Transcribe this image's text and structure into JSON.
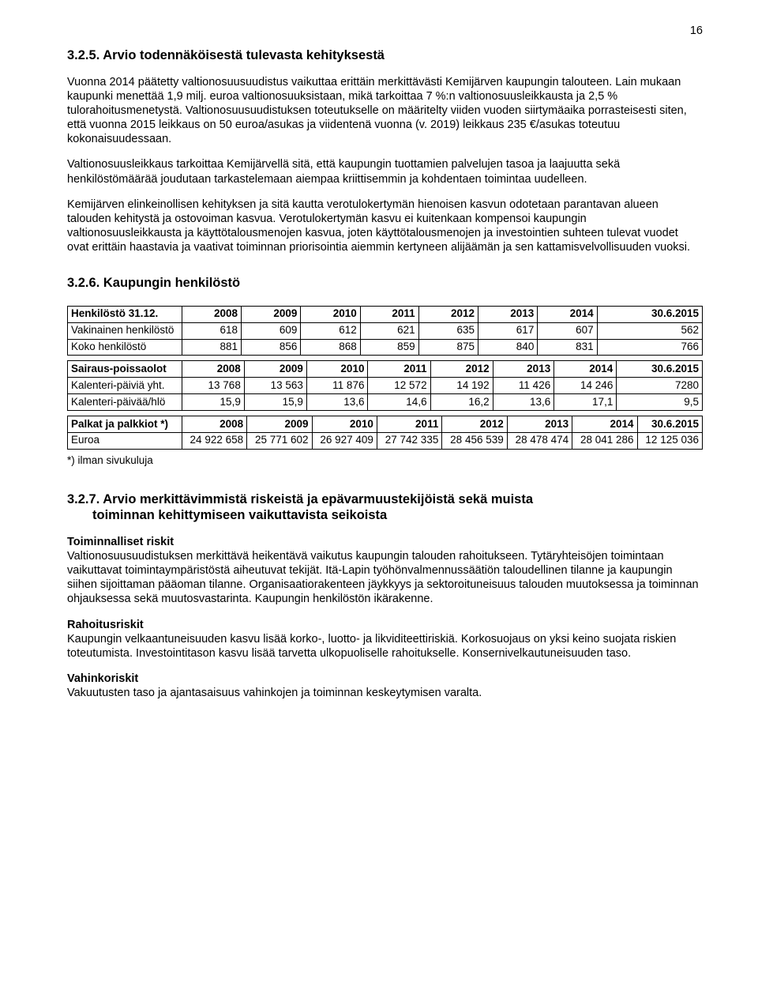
{
  "page_number": "16",
  "section_325": {
    "heading": "3.2.5. Arvio todennäköisestä tulevasta kehityksestä",
    "p1": "Vuonna 2014 päätetty valtionosuusuudistus vaikuttaa erittäin merkittävästi Kemijärven kaupungin talouteen. Lain mukaan kaupunki menettää 1,9 milj. euroa valtionosuuksistaan, mikä tarkoittaa 7 %:n valtionosuusleikkausta ja 2,5 % tulorahoitusmenetystä. Valtionosuusuudistuksen toteutukselle on määritelty viiden vuoden siirtymäaika porrasteisesti siten, että vuonna 2015 leikkaus on 50 euroa/asukas ja viidentenä vuonna (v. 2019) leikkaus 235 €/asukas toteutuu kokonaisuudessaan.",
    "p2": "Valtionosuusleikkaus tarkoittaa Kemijärvellä sitä, että kaupungin tuottamien palvelujen tasoa ja laajuutta sekä henkilöstömäärää joudutaan tarkastelemaan aiempaa kriittisemmin ja kohdentaen toimintaa uudelleen.",
    "p3": "Kemijärven elinkeinollisen kehityksen ja sitä kautta verotulokertymän hienoisen kasvun odotetaan parantavan alueen talouden kehitystä ja ostovoiman kasvua. Verotulokertymän kasvu ei kuitenkaan kompensoi kaupungin valtionosuusleikkausta ja käyttötalousmenojen kasvua, joten käyttötalousmenojen ja investointien suhteen tulevat vuodet ovat erittäin haastavia ja vaativat toiminnan priorisointia aiemmin kertyneen alijäämän ja sen kattamisvelvollisuuden vuoksi."
  },
  "section_326": {
    "heading": "3.2.6. Kaupungin henkilöstö",
    "years": [
      "2008",
      "2009",
      "2010",
      "2011",
      "2012",
      "2013",
      "2014",
      "30.6.2015"
    ],
    "table1": {
      "title": "Henkilöstö 31.12.",
      "rows": [
        {
          "label": "Vakinainen henkilöstö",
          "v": [
            "618",
            "609",
            "612",
            "621",
            "635",
            "617",
            "607",
            "562"
          ]
        },
        {
          "label": "Koko henkilöstö",
          "v": [
            "881",
            "856",
            "868",
            "859",
            "875",
            "840",
            "831",
            "766"
          ]
        }
      ]
    },
    "table2": {
      "title": "Sairaus-poissaolot",
      "rows": [
        {
          "label": "Kalenteri-päiviä yht.",
          "v": [
            "13 768",
            "13 563",
            "11 876",
            "12 572",
            "14 192",
            "11 426",
            "14 246",
            "7280"
          ]
        },
        {
          "label": "Kalenteri-päivää/hlö",
          "v": [
            "15,9",
            "15,9",
            "13,6",
            "14,6",
            "16,2",
            "13,6",
            "17,1",
            "9,5"
          ]
        }
      ]
    },
    "table3": {
      "title": "Palkat ja palkkiot *)",
      "rows": [
        {
          "label": "Euroa",
          "v": [
            "24 922 658",
            "25 771 602",
            "26 927 409",
            "27 742 335",
            "28 456 539",
            "28 478 474",
            "28 041 286",
            "12 125 036"
          ]
        }
      ],
      "footnote": "*) ilman sivukuluja"
    }
  },
  "section_327": {
    "heading_line1": "3.2.7. Arvio merkittävimmistä riskeistä ja epävarmuustekijöistä sekä muista",
    "heading_line2": "toiminnan kehittymiseen vaikuttavista seikoista",
    "operational_label": "Toiminnalliset riskit",
    "operational_text": "Valtionosuusuudistuksen merkittävä heikentävä vaikutus kaupungin talouden rahoitukseen. Tytäryhteisöjen toimintaan vaikuttavat toimintaympäristöstä aiheutuvat tekijät. Itä-Lapin työhönvalmennussäätiön taloudellinen tilanne ja kaupungin siihen sijoittaman pääoman tilanne. Organisaatiorakenteen jäykkyys ja sektoroituneisuus talouden muutoksessa ja toiminnan ohjauksessa sekä muutosvastarinta. Kaupungin henkilöstön ikärakenne.",
    "financial_label": "Rahoitusriskit",
    "financial_text": "Kaupungin velkaantuneisuuden kasvu lisää korko-, luotto- ja likviditeettiriskiä. Korkosuojaus on yksi keino suojata riskien toteutumista. Investointitason kasvu lisää tarvetta ulkopuoliselle rahoitukselle. Konsernivelkautuneisuuden taso.",
    "damage_label": "Vahinkoriskit",
    "damage_text": "Vakuutusten taso ja ajantasaisuus vahinkojen ja toiminnan keskeytymisen varalta."
  }
}
